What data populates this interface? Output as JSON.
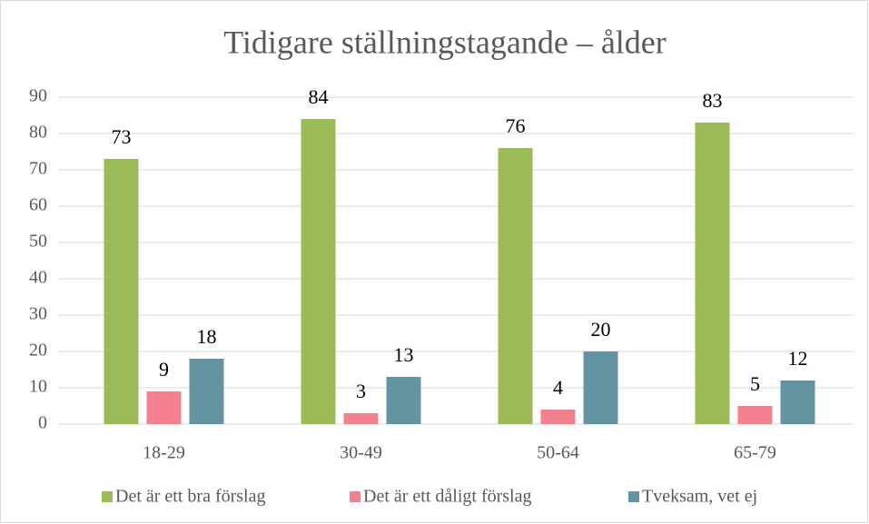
{
  "chart_data": {
    "type": "bar",
    "title": "Tidigare ställningstagande – ålder",
    "categories": [
      "18-29",
      "30-49",
      "50-64",
      "65-79"
    ],
    "series": [
      {
        "name": "Det är ett bra förslag",
        "color": "#9bbb59",
        "values": [
          73,
          84,
          76,
          83
        ]
      },
      {
        "name": "Det är ett dåligt förslag",
        "color": "#f4808f",
        "values": [
          9,
          3,
          4,
          5
        ]
      },
      {
        "name": "Tveksam, vet ej",
        "color": "#6494a1",
        "values": [
          18,
          13,
          20,
          12
        ]
      }
    ],
    "ylim": [
      0,
      90
    ],
    "yticks": [
      0,
      10,
      20,
      30,
      40,
      50,
      60,
      70,
      80,
      90
    ],
    "grid": true,
    "legend": "bottom"
  }
}
